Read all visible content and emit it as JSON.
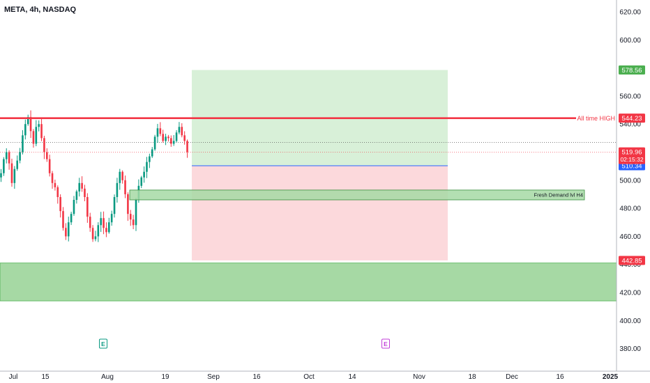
{
  "title": "META, 4h, NASDAQ",
  "colors": {
    "up": "#089981",
    "down": "#f23645",
    "resistance": "#f23645",
    "profit_zone": "#d8f0d8",
    "loss_zone": "#fcd9dc",
    "demand_zone": "#a6d9a4",
    "demand_border": "#4caf50",
    "entry_line": "#2962ff",
    "earnings_green": "#089981",
    "earnings_purple": "#c13fd8",
    "badge_green": "#4caf50",
    "badge_red": "#f23645",
    "badge_blue": "#2962ff"
  },
  "chart_data": {
    "type": "candlestick",
    "symbol": "META",
    "interval": "4h",
    "exchange": "NASDAQ",
    "ylim": [
      372,
      630
    ],
    "y_ticks": [
      620,
      600,
      580,
      560,
      540,
      520,
      500,
      480,
      460,
      440,
      420,
      400,
      380
    ],
    "y_tick_labels": [
      "620.00",
      "600.00",
      "580.00",
      "560.00",
      "540.00",
      "520.00",
      "500.00",
      "480.00",
      "460.00",
      "440.00",
      "420.00",
      "400.00",
      "380.00"
    ],
    "x_tick_labels": [
      "Jul",
      "15",
      "Aug",
      "19",
      "Sep",
      "16",
      "Oct",
      "14",
      "Nov",
      "18",
      "Dec",
      "16",
      "2025"
    ],
    "price_path": [
      505,
      515,
      520,
      512,
      498,
      508,
      514,
      520,
      532,
      540,
      545,
      535,
      526,
      538,
      540,
      530,
      520,
      515,
      505,
      498,
      495,
      488,
      478,
      466,
      460,
      470,
      476,
      486,
      492,
      498,
      494,
      488,
      474,
      466,
      458,
      460,
      468,
      473,
      466,
      463,
      470,
      476,
      488,
      498,
      506,
      500,
      490,
      476,
      472,
      468,
      486,
      496,
      502,
      506,
      513,
      517,
      522,
      531,
      537,
      533,
      528,
      531,
      530,
      526,
      528,
      534,
      538,
      532,
      528,
      520
    ],
    "resistance": {
      "label": "All time HIGH",
      "value": 544.23
    },
    "current_price": {
      "value": "519.96",
      "countdown": "02:15:32"
    },
    "entry": {
      "value": 510.34
    },
    "take_profit": {
      "value": 578.56
    },
    "stop_loss": {
      "value": 442.85
    },
    "demand_h4": {
      "label": "Fresh Demand lvl H4",
      "low": 486,
      "high": 493
    },
    "demand_zone_large": {
      "low": 414,
      "high": 441
    },
    "earnings_markers": [
      "E",
      "E"
    ]
  }
}
